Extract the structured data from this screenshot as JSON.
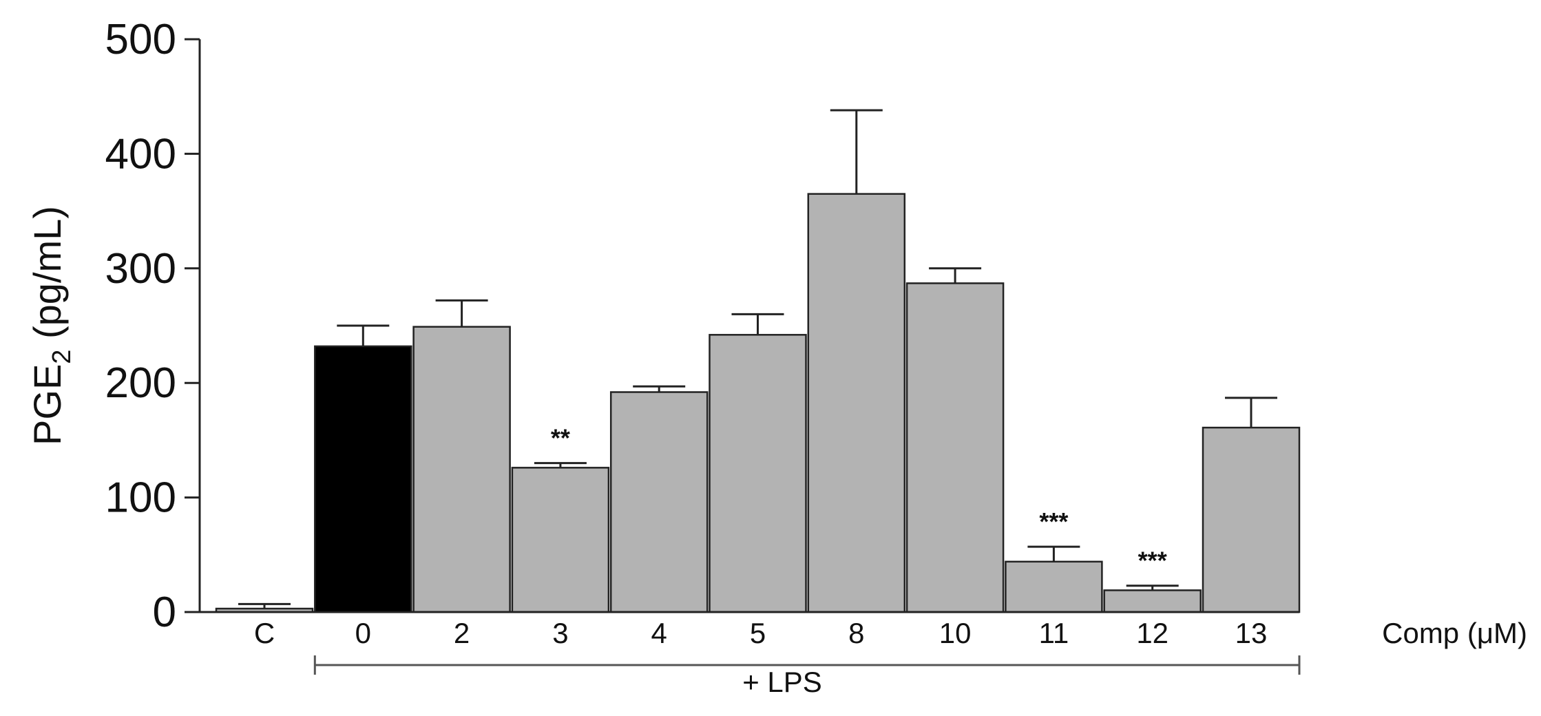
{
  "chart_data": {
    "type": "bar",
    "categories": [
      "C",
      "0",
      "2",
      "3",
      "4",
      "5",
      "8",
      "10",
      "11",
      "12",
      "13"
    ],
    "values": [
      3,
      232,
      249,
      126,
      192,
      242,
      365,
      287,
      44,
      19,
      161
    ],
    "errors": [
      4,
      18,
      23,
      4,
      5,
      18,
      73,
      13,
      13,
      4,
      26
    ],
    "significance": [
      "",
      "",
      "",
      "**",
      "",
      "",
      "",
      "",
      "***",
      "***",
      ""
    ],
    "bar_colors": [
      "#b3b3b3",
      "#000000",
      "#b3b3b3",
      "#b3b3b3",
      "#b3b3b3",
      "#b3b3b3",
      "#b3b3b3",
      "#b3b3b3",
      "#b3b3b3",
      "#b3b3b3",
      "#b3b3b3"
    ],
    "ylabel_main": "PGE",
    "ylabel_sub": "2",
    "ylabel_unit": " (pg/mL)",
    "xlabel": "Comp (μM)",
    "group_label": "+ LPS",
    "group_range": [
      "0",
      "13"
    ],
    "ylim": [
      0,
      500
    ],
    "yticks": [
      0,
      100,
      200,
      300,
      400,
      500
    ],
    "grid": false,
    "colors": {
      "treated": "#b3b3b3",
      "control_lps": "#000000",
      "outline": "#222222"
    }
  }
}
